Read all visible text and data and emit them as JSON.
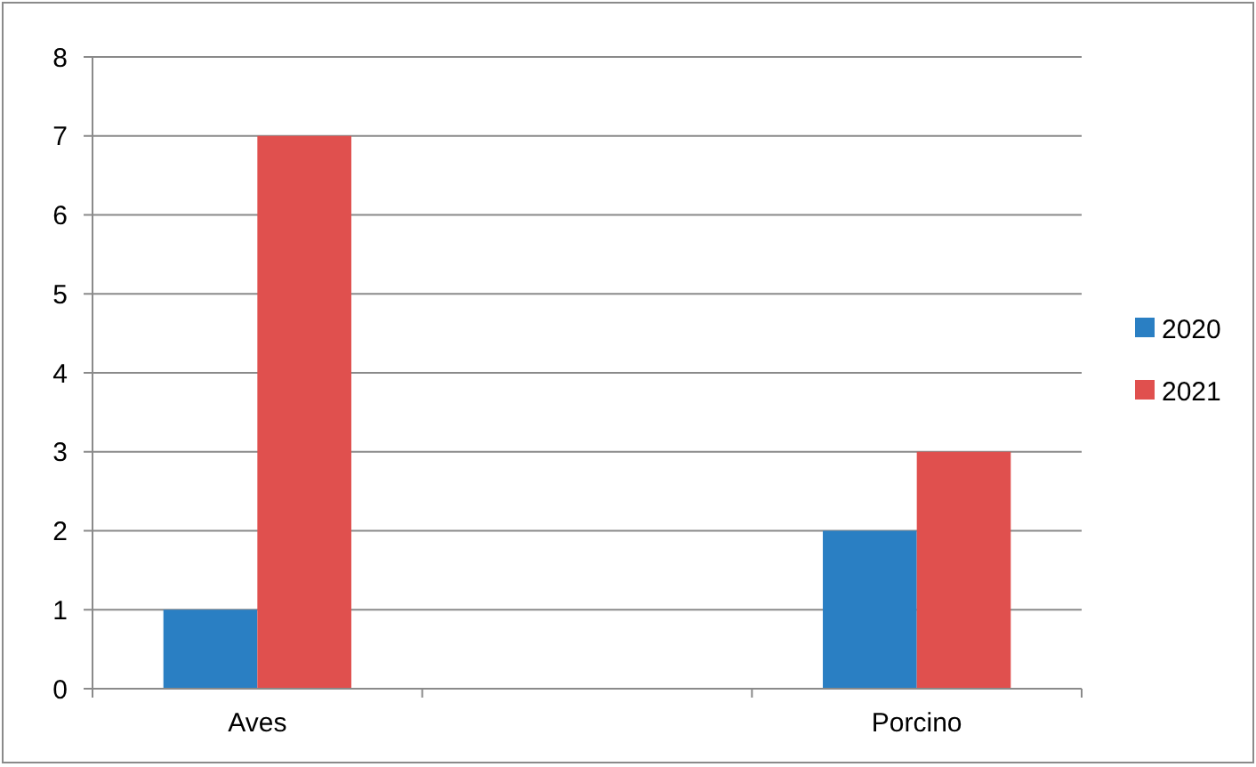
{
  "chart_data": {
    "type": "bar",
    "categories": [
      "Aves",
      null,
      "Porcino"
    ],
    "series": [
      {
        "name": "2020",
        "color": "#2a7fc3",
        "values": [
          1,
          null,
          2
        ]
      },
      {
        "name": "2021",
        "color": "#e0504e",
        "values": [
          7,
          null,
          3
        ]
      }
    ],
    "ylim": [
      0,
      8
    ],
    "yticks": [
      0,
      1,
      2,
      3,
      4,
      5,
      6,
      7,
      8
    ],
    "grid": "y",
    "legend": "right"
  }
}
